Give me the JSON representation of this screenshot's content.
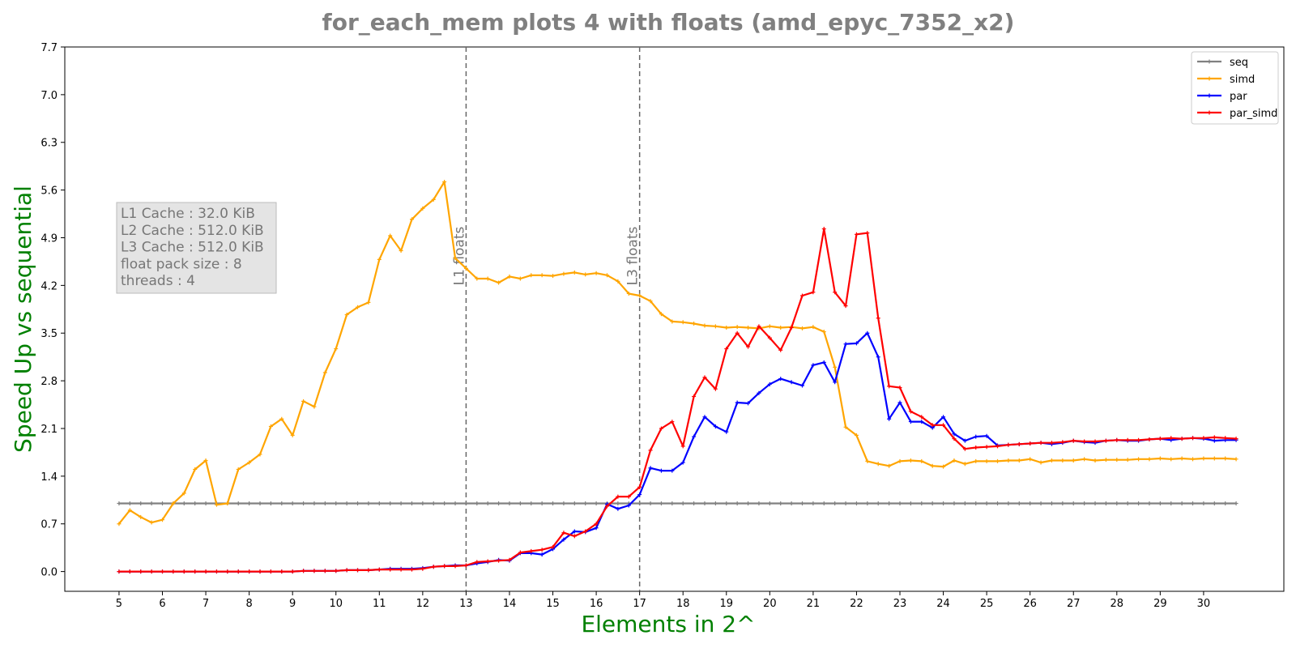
{
  "chart_data": {
    "type": "line",
    "title": "for_each_mem plots 4 with floats  (amd_epyc_7352_x2)",
    "xlabel": "Elements in 2^",
    "ylabel": "Speed Up vs sequential",
    "xlim": [
      3.75,
      31.85
    ],
    "ylim": [
      -0.29,
      7.7
    ],
    "xticks": [
      5,
      6,
      7,
      8,
      9,
      10,
      11,
      12,
      13,
      14,
      15,
      16,
      17,
      18,
      19,
      20,
      21,
      22,
      23,
      24,
      25,
      26,
      27,
      28,
      29,
      30
    ],
    "yticks": [
      0.0,
      0.7,
      1.4,
      2.1,
      2.8,
      3.5,
      4.2,
      4.9,
      5.6,
      6.3,
      7.0,
      7.7
    ],
    "ytick_labels": [
      "0.0",
      "0.7",
      "1.4",
      "2.1",
      "2.8",
      "3.5",
      "4.2",
      "4.9",
      "5.6",
      "6.3",
      "7.0",
      "7.7"
    ],
    "grid": false,
    "legend_position": "top-right",
    "x": [
      5.0,
      5.25,
      5.5,
      5.75,
      6.0,
      6.25,
      6.5,
      6.75,
      7.0,
      7.25,
      7.5,
      7.75,
      8.0,
      8.25,
      8.5,
      8.75,
      9.0,
      9.25,
      9.5,
      9.75,
      10.0,
      10.25,
      10.5,
      10.75,
      11.0,
      11.25,
      11.5,
      11.75,
      12.0,
      12.25,
      12.5,
      12.75,
      13.0,
      13.25,
      13.5,
      13.75,
      14.0,
      14.25,
      14.5,
      14.75,
      15.0,
      15.25,
      15.5,
      15.75,
      16.0,
      16.25,
      16.5,
      16.75,
      17.0,
      17.25,
      17.5,
      17.75,
      18.0,
      18.25,
      18.5,
      18.75,
      19.0,
      19.25,
      19.5,
      19.75,
      20.0,
      20.25,
      20.5,
      20.75,
      21.0,
      21.25,
      21.5,
      21.75,
      22.0,
      22.25,
      22.5,
      22.75,
      23.0,
      23.25,
      23.5,
      23.75,
      24.0,
      24.25,
      24.5,
      24.75,
      25.0,
      25.25,
      25.5,
      25.75,
      26.0,
      26.25,
      26.5,
      26.75,
      27.0,
      27.25,
      27.5,
      27.75,
      28.0,
      28.25,
      28.5,
      28.75,
      29.0,
      29.25,
      29.5,
      29.75,
      30.0,
      30.25,
      30.5,
      30.75
    ],
    "series": [
      {
        "name": "seq",
        "color": "#808080",
        "values": [
          1.0,
          1.0,
          1.0,
          1.0,
          1.0,
          1.0,
          1.0,
          1.0,
          1.0,
          1.0,
          1.0,
          1.0,
          1.0,
          1.0,
          1.0,
          1.0,
          1.0,
          1.0,
          1.0,
          1.0,
          1.0,
          1.0,
          1.0,
          1.0,
          1.0,
          1.0,
          1.0,
          1.0,
          1.0,
          1.0,
          1.0,
          1.0,
          1.0,
          1.0,
          1.0,
          1.0,
          1.0,
          1.0,
          1.0,
          1.0,
          1.0,
          1.0,
          1.0,
          1.0,
          1.0,
          1.0,
          1.0,
          1.0,
          1.0,
          1.0,
          1.0,
          1.0,
          1.0,
          1.0,
          1.0,
          1.0,
          1.0,
          1.0,
          1.0,
          1.0,
          1.0,
          1.0,
          1.0,
          1.0,
          1.0,
          1.0,
          1.0,
          1.0,
          1.0,
          1.0,
          1.0,
          1.0,
          1.0,
          1.0,
          1.0,
          1.0,
          1.0,
          1.0,
          1.0,
          1.0,
          1.0,
          1.0,
          1.0,
          1.0,
          1.0,
          1.0,
          1.0,
          1.0,
          1.0,
          1.0,
          1.0,
          1.0,
          1.0,
          1.0,
          1.0,
          1.0,
          1.0,
          1.0,
          1.0,
          1.0,
          1.0,
          1.0,
          1.0,
          1.0
        ]
      },
      {
        "name": "simd",
        "color": "#ffa500",
        "values": [
          0.7,
          0.9,
          0.8,
          0.72,
          0.76,
          1.0,
          1.15,
          1.5,
          1.63,
          0.98,
          1.0,
          1.5,
          1.6,
          1.72,
          2.13,
          2.24,
          2.0,
          2.5,
          2.42,
          2.92,
          3.27,
          3.77,
          3.88,
          3.95,
          4.58,
          4.93,
          4.71,
          5.17,
          5.33,
          5.46,
          5.72,
          4.6,
          4.45,
          4.3,
          4.3,
          4.24,
          4.33,
          4.3,
          4.35,
          4.35,
          4.34,
          4.37,
          4.39,
          4.36,
          4.38,
          4.35,
          4.26,
          4.08,
          4.05,
          3.97,
          3.78,
          3.67,
          3.66,
          3.64,
          3.61,
          3.6,
          3.58,
          3.59,
          3.58,
          3.57,
          3.6,
          3.58,
          3.59,
          3.57,
          3.59,
          3.52,
          3.0,
          2.12,
          2.0,
          1.62,
          1.58,
          1.55,
          1.62,
          1.63,
          1.62,
          1.55,
          1.54,
          1.63,
          1.58,
          1.62,
          1.62,
          1.62,
          1.63,
          1.63,
          1.65,
          1.6,
          1.63,
          1.63,
          1.63,
          1.65,
          1.63,
          1.64,
          1.64,
          1.64,
          1.65,
          1.65,
          1.66,
          1.65,
          1.66,
          1.65,
          1.66,
          1.66,
          1.66,
          1.65
        ]
      },
      {
        "name": "par",
        "color": "#0000ff",
        "values": [
          0.0,
          0.0,
          0.0,
          0.0,
          0.0,
          0.0,
          0.0,
          0.0,
          0.0,
          0.0,
          0.0,
          0.0,
          0.0,
          0.0,
          0.0,
          0.0,
          0.0,
          0.01,
          0.01,
          0.01,
          0.01,
          0.02,
          0.02,
          0.02,
          0.03,
          0.04,
          0.04,
          0.04,
          0.05,
          0.07,
          0.08,
          0.09,
          0.09,
          0.12,
          0.14,
          0.17,
          0.16,
          0.27,
          0.27,
          0.25,
          0.33,
          0.47,
          0.59,
          0.58,
          0.64,
          0.99,
          0.92,
          0.97,
          1.13,
          1.52,
          1.48,
          1.48,
          1.6,
          1.98,
          2.27,
          2.13,
          2.05,
          2.48,
          2.47,
          2.62,
          2.75,
          2.83,
          2.78,
          2.73,
          3.03,
          3.07,
          2.78,
          3.34,
          3.35,
          3.5,
          3.15,
          2.24,
          2.48,
          2.2,
          2.2,
          2.11,
          2.27,
          2.02,
          1.92,
          1.98,
          1.99,
          1.85,
          1.86,
          1.87,
          1.88,
          1.89,
          1.87,
          1.89,
          1.92,
          1.9,
          1.89,
          1.92,
          1.93,
          1.92,
          1.92,
          1.94,
          1.95,
          1.93,
          1.95,
          1.96,
          1.95,
          1.92,
          1.93,
          1.93
        ]
      },
      {
        "name": "par_simd",
        "color": "#ff0000",
        "values": [
          0.0,
          0.0,
          0.0,
          0.0,
          0.0,
          0.0,
          0.0,
          0.0,
          0.0,
          0.0,
          0.0,
          0.0,
          0.0,
          0.0,
          0.0,
          0.0,
          0.0,
          0.01,
          0.01,
          0.01,
          0.01,
          0.02,
          0.02,
          0.02,
          0.03,
          0.03,
          0.03,
          0.03,
          0.04,
          0.07,
          0.08,
          0.08,
          0.09,
          0.14,
          0.15,
          0.16,
          0.17,
          0.28,
          0.3,
          0.32,
          0.36,
          0.57,
          0.52,
          0.59,
          0.7,
          0.96,
          1.1,
          1.1,
          1.24,
          1.78,
          2.1,
          2.2,
          1.84,
          2.57,
          2.85,
          2.68,
          3.27,
          3.5,
          3.3,
          3.6,
          3.43,
          3.25,
          3.58,
          4.05,
          4.1,
          5.03,
          4.1,
          3.9,
          4.95,
          4.97,
          3.72,
          2.72,
          2.7,
          2.35,
          2.27,
          2.15,
          2.15,
          1.95,
          1.8,
          1.82,
          1.83,
          1.84,
          1.86,
          1.87,
          1.88,
          1.89,
          1.89,
          1.9,
          1.92,
          1.91,
          1.91,
          1.92,
          1.93,
          1.93,
          1.93,
          1.94,
          1.95,
          1.96,
          1.95,
          1.96,
          1.96,
          1.97,
          1.96,
          1.95
        ]
      }
    ],
    "vlines": [
      {
        "x": 13,
        "label": "L1 floats"
      },
      {
        "x": 17,
        "label": "L3 floats"
      }
    ],
    "info_box": [
      "L1 Cache : 32.0 KiB",
      "L2 Cache : 512.0 KiB",
      "L3 Cache : 512.0 KiB",
      "float pack size : 8",
      "threads : 4"
    ]
  }
}
